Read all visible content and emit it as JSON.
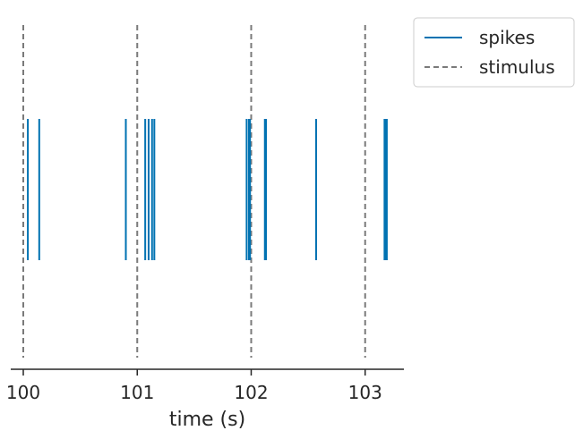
{
  "chart_data": {
    "type": "event-raster",
    "title": "",
    "xlabel": "time (s)",
    "ylabel": "",
    "xlim": [
      99.89,
      103.34
    ],
    "xticks": [
      100,
      101,
      102,
      103
    ],
    "xtick_labels": [
      "100",
      "101",
      "102",
      "103"
    ],
    "grid": false,
    "legend_position": "outside top-right",
    "series": [
      {
        "name": "spikes",
        "style": "solid vertical ticks",
        "color": "#0072b2",
        "x": [
          100.04,
          100.14,
          100.9,
          101.07,
          101.1,
          101.13,
          101.15,
          101.96,
          101.98,
          101.99,
          102.12,
          102.13,
          102.57,
          103.17,
          103.18,
          103.19
        ]
      },
      {
        "name": "stimulus",
        "style": "dashed vertical lines",
        "color": "#7a7a7a",
        "x": [
          100,
          101,
          102,
          103
        ]
      }
    ]
  }
}
